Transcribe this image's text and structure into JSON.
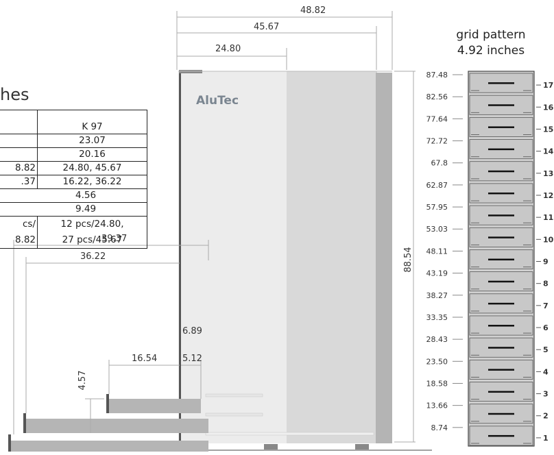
{
  "heading_fragment": "hes",
  "brand": "AluTec",
  "overall_dimensions": {
    "width_outer": "48.82",
    "width_mid": "45.67",
    "width_inner": "24.80",
    "height": "88.54"
  },
  "spec_table": {
    "column_header": "K 97",
    "rows": [
      {
        "left": "",
        "right": "23.07"
      },
      {
        "left": "",
        "right": "20.16"
      },
      {
        "left": "8.82",
        "right": "24.80, 45.67"
      },
      {
        "left": ".37",
        "right": "16.22, 36.22"
      },
      {
        "merged": "4.56"
      },
      {
        "merged": "9.49"
      },
      {
        "left": "cs/",
        "right": "12 pcs/24.80,"
      },
      {
        "left": "8.82",
        "right": "27 pcs/45.67"
      }
    ]
  },
  "shelf_dimensions": {
    "shelf_width_1": "39.37",
    "shelf_width_2": "36.22",
    "shelf_width_3": "16.54",
    "side_height_1": "6.89",
    "side_height_2": "5.12",
    "lip_height": "4.57"
  },
  "grid_pattern": {
    "title_line1": "grid pattern",
    "title_line2": "4.92 inches",
    "heights": [
      "87.48",
      "82.56",
      "77.64",
      "72.72",
      "67.8",
      "62.87",
      "57.95",
      "53.03",
      "48.11",
      "43.19",
      "38.27",
      "33.35",
      "28.43",
      "23.50",
      "18.58",
      "13.66",
      "8.74"
    ],
    "slots": [
      "17",
      "16",
      "15",
      "14",
      "13",
      "12",
      "11",
      "10",
      "9",
      "8",
      "7",
      "6",
      "5",
      "4",
      "3",
      "2",
      "1"
    ]
  }
}
